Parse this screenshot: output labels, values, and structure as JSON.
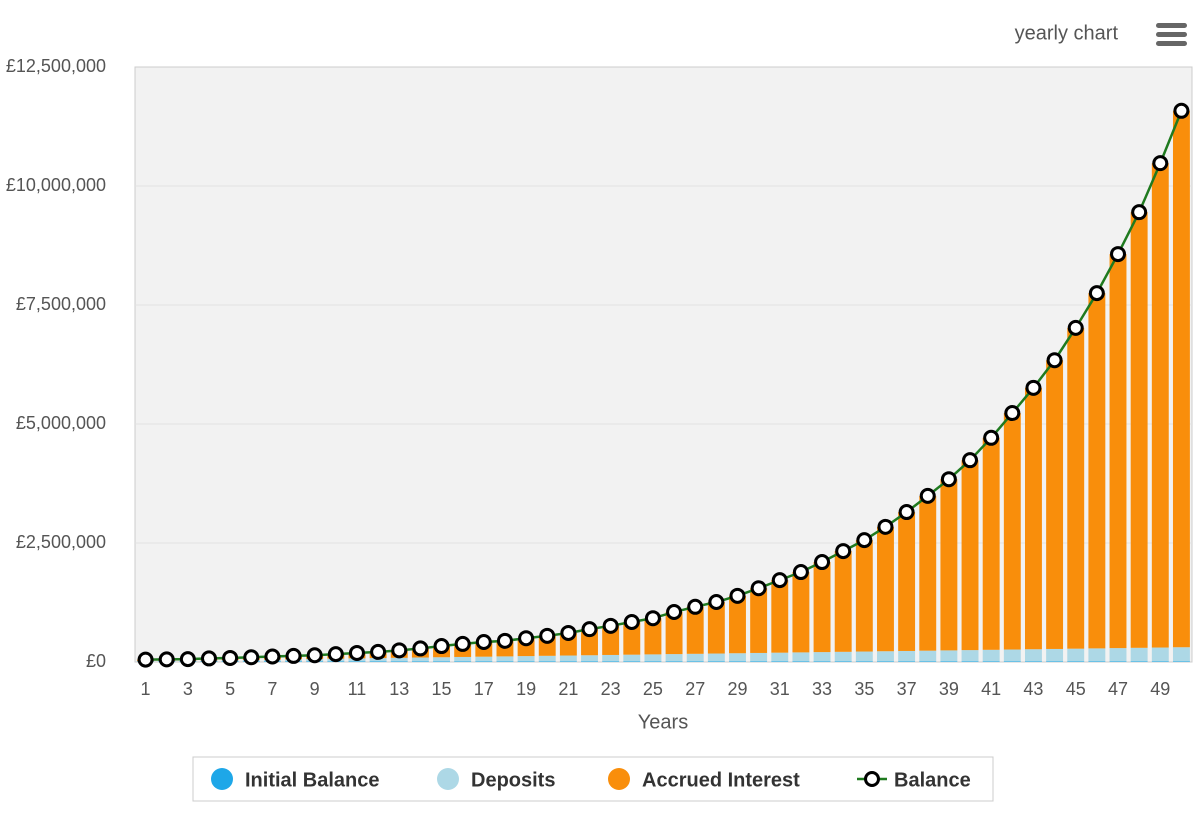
{
  "chart_data": {
    "type": "bar",
    "menu_label": "yearly chart",
    "x_label": "Years",
    "categories": [
      1,
      null,
      3,
      null,
      5,
      null,
      7,
      null,
      9,
      null,
      11,
      null,
      13,
      null,
      15,
      null,
      17,
      null,
      19,
      null,
      21,
      null,
      23,
      null,
      25,
      null,
      27,
      null,
      29,
      null,
      31,
      null,
      33,
      null,
      35,
      null,
      37,
      null,
      39,
      null,
      41,
      null,
      43,
      null,
      45,
      null,
      47,
      null,
      49,
      null
    ],
    "series": [
      {
        "name": "Initial Balance",
        "type": "bar",
        "color": "#1ea7e8",
        "values": [
          10000,
          10000,
          10000,
          10000,
          10000,
          10000,
          10000,
          10000,
          10000,
          10000,
          10000,
          10000,
          10000,
          10000,
          10000,
          10000,
          10000,
          10000,
          10000,
          10000,
          10000,
          10000,
          10000,
          10000,
          10000,
          10000,
          10000,
          10000,
          10000,
          10000,
          10000,
          10000,
          10000,
          10000,
          10000,
          10000,
          10000,
          10000,
          10000,
          10000,
          10000,
          10000,
          10000,
          10000,
          10000,
          10000,
          10000,
          10000,
          10000,
          10000
        ]
      },
      {
        "name": "Deposits",
        "type": "bar",
        "color": "#add8e6",
        "values": [
          6000,
          12000,
          18000,
          24000,
          30000,
          36000,
          42000,
          48000,
          54000,
          60000,
          66000,
          72000,
          78000,
          84000,
          90000,
          96000,
          102000,
          108000,
          114000,
          120000,
          126000,
          132000,
          138000,
          144000,
          150000,
          156000,
          162000,
          168000,
          174000,
          180000,
          186000,
          192000,
          198000,
          204000,
          210000,
          216000,
          222000,
          228000,
          234000,
          240000,
          246000,
          252000,
          258000,
          264000,
          270000,
          276000,
          282000,
          288000,
          294000,
          300000
        ]
      },
      {
        "name": "Accrued Interest",
        "type": "bar",
        "color": "#f98e0b",
        "values": [
          34000,
          33000,
          32000,
          41000,
          45000,
          54000,
          63000,
          70000,
          78000,
          95000,
          114000,
          130000,
          157000,
          191000,
          235000,
          274000,
          308000,
          327000,
          376000,
          420000,
          474000,
          548000,
          612000,
          686000,
          760000,
          884000,
          988000,
          1082000,
          1206000,
          1360000,
          1524000,
          1688000,
          1892000,
          2116000,
          2340000,
          2614000,
          2918000,
          3252000,
          3596000,
          3990000,
          4454000,
          4968000,
          5492000,
          6066000,
          6740000,
          7464000,
          8278000,
          9152000,
          10176000,
          11270000
        ]
      },
      {
        "name": "Balance",
        "type": "line",
        "color": "#1f7a1f",
        "values": [
          50000,
          55000,
          60000,
          75000,
          85000,
          100000,
          115000,
          128000,
          142000,
          165000,
          190000,
          212000,
          245000,
          285000,
          335000,
          380000,
          420000,
          445000,
          500000,
          550000,
          610000,
          690000,
          760000,
          840000,
          920000,
          1050000,
          1160000,
          1260000,
          1390000,
          1550000,
          1720000,
          1890000,
          2100000,
          2330000,
          2560000,
          2840000,
          3150000,
          3490000,
          3840000,
          4240000,
          4710000,
          5230000,
          5760000,
          6340000,
          7020000,
          7750000,
          8570000,
          9450000,
          10480000,
          11580000
        ]
      }
    ],
    "ylim": [
      0,
      12500000
    ],
    "yticks": [
      {
        "value": 0,
        "label": "£0"
      },
      {
        "value": 2500000,
        "label": "£2,500,000"
      },
      {
        "value": 5000000,
        "label": "£5,000,000"
      },
      {
        "value": 7500000,
        "label": "£7,500,000"
      },
      {
        "value": 10000000,
        "label": "£10,000,000"
      },
      {
        "value": 12500000,
        "label": "£12,500,000"
      }
    ],
    "grid": true,
    "legend": "bottom"
  }
}
